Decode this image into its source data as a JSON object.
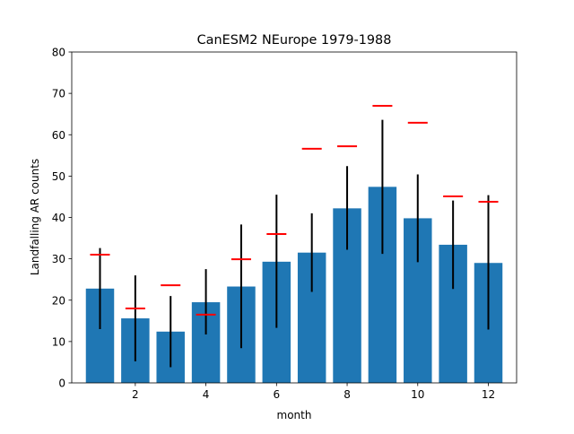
{
  "chart_data": {
    "type": "bar",
    "title": "CanESM2 NEurope 1979-1988",
    "xlabel": "month",
    "ylabel": "Landfalling AR counts",
    "x": [
      1,
      2,
      3,
      4,
      5,
      6,
      7,
      8,
      9,
      10,
      11,
      12
    ],
    "values": [
      22.8,
      15.6,
      12.4,
      19.5,
      23.3,
      29.3,
      31.5,
      42.2,
      47.4,
      39.8,
      33.4,
      29.0
    ],
    "error_low": [
      13.0,
      5.2,
      3.8,
      11.7,
      8.4,
      13.3,
      22.0,
      32.2,
      31.2,
      29.2,
      22.7,
      12.9
    ],
    "error_high": [
      32.6,
      26.0,
      21.0,
      27.5,
      38.3,
      45.5,
      41.0,
      52.4,
      63.6,
      50.4,
      44.1,
      45.4
    ],
    "reference": [
      31.0,
      18.0,
      23.6,
      16.5,
      29.9,
      36.0,
      56.6,
      57.2,
      67.0,
      62.9,
      45.1,
      43.8
    ],
    "xlim": [
      0.2,
      12.8
    ],
    "ylim": [
      0,
      80
    ],
    "xticks": [
      2,
      4,
      6,
      8,
      10,
      12
    ],
    "yticks": [
      0,
      10,
      20,
      30,
      40,
      50,
      60,
      70,
      80
    ],
    "grid": false,
    "colors": {
      "bar": "#1f77b4",
      "error": "#000000",
      "reference": "#ff0000",
      "axes": "#000000"
    }
  }
}
